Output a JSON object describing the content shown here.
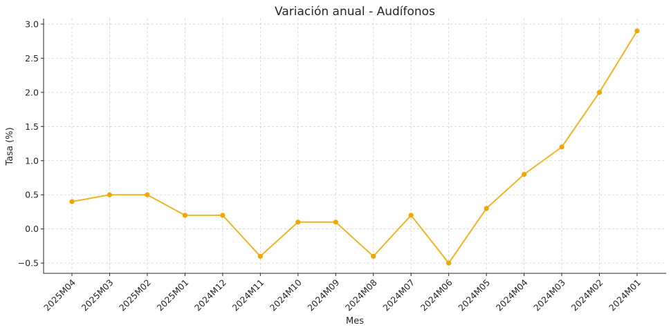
{
  "chart_data": {
    "type": "line",
    "title": "Variación anual - Audífonos",
    "xlabel": "Mes",
    "ylabel": "Tasa (%)",
    "categories": [
      "2025M04",
      "2025M03",
      "2025M02",
      "2025M01",
      "2024M12",
      "2024M11",
      "2024M10",
      "2024M09",
      "2024M08",
      "2024M07",
      "2024M06",
      "2024M05",
      "2024M04",
      "2024M03",
      "2024M02",
      "2024M01"
    ],
    "series": [
      {
        "values": [
          0.4,
          0.5,
          0.5,
          0.2,
          0.2,
          -0.4,
          0.1,
          0.1,
          -0.4,
          0.2,
          -0.5,
          0.3,
          0.8,
          1.2,
          2.0,
          2.9
        ]
      }
    ],
    "ylim": [
      -0.65,
      3.08
    ],
    "yticks": [
      -0.5,
      0.0,
      0.5,
      1.0,
      1.5,
      2.0,
      2.5,
      3.0
    ],
    "ytick_labels": [
      "−0.5",
      "0.0",
      "0.5",
      "1.0",
      "1.5",
      "2.0",
      "2.5",
      "3.0"
    ],
    "grid": true,
    "colors": {
      "line": "#f0b323",
      "marker": "#f0a500"
    }
  }
}
